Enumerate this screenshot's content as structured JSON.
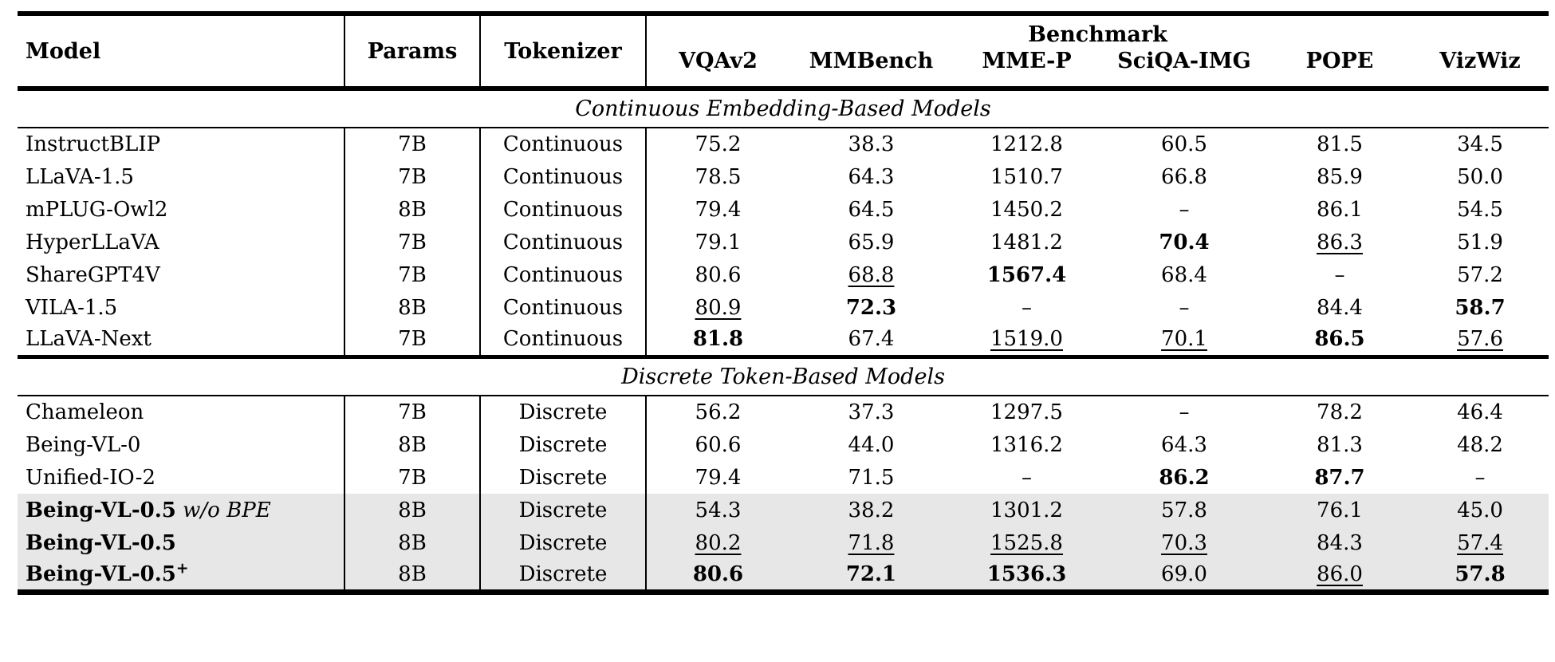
{
  "table": {
    "headers": {
      "model": "Model",
      "params": "Params",
      "tokenizer": "Tokenizer",
      "benchmark_group": "Benchmark",
      "benchmarks": [
        "VQAv2",
        "MMBench",
        "MME-P",
        "SciQA-IMG",
        "POPE",
        "VizWiz"
      ]
    },
    "sections": [
      {
        "title": "Continuous Embedding-Based Models",
        "rows": [
          {
            "model": {
              "text": "InstructBLIP",
              "bold": false
            },
            "params": "7B",
            "tokenizer": "Continuous",
            "highlight": false,
            "cells": [
              {
                "v": "75.2",
                "style": "p"
              },
              {
                "v": "38.3",
                "style": "p"
              },
              {
                "v": "1212.8",
                "style": "p"
              },
              {
                "v": "60.5",
                "style": "p"
              },
              {
                "v": "81.5",
                "style": "p"
              },
              {
                "v": "34.5",
                "style": "p"
              }
            ]
          },
          {
            "model": {
              "text": "LLaVA-1.5",
              "bold": false
            },
            "params": "7B",
            "tokenizer": "Continuous",
            "highlight": false,
            "cells": [
              {
                "v": "78.5",
                "style": "p"
              },
              {
                "v": "64.3",
                "style": "p"
              },
              {
                "v": "1510.7",
                "style": "p"
              },
              {
                "v": "66.8",
                "style": "p"
              },
              {
                "v": "85.9",
                "style": "p"
              },
              {
                "v": "50.0",
                "style": "p"
              }
            ]
          },
          {
            "model": {
              "text": "mPLUG-Owl2",
              "bold": false
            },
            "params": "8B",
            "tokenizer": "Continuous",
            "highlight": false,
            "cells": [
              {
                "v": "79.4",
                "style": "p"
              },
              {
                "v": "64.5",
                "style": "p"
              },
              {
                "v": "1450.2",
                "style": "p"
              },
              {
                "v": "–",
                "style": "p"
              },
              {
                "v": "86.1",
                "style": "p"
              },
              {
                "v": "54.5",
                "style": "p"
              }
            ]
          },
          {
            "model": {
              "text": "HyperLLaVA",
              "bold": false
            },
            "params": "7B",
            "tokenizer": "Continuous",
            "highlight": false,
            "cells": [
              {
                "v": "79.1",
                "style": "p"
              },
              {
                "v": "65.9",
                "style": "p"
              },
              {
                "v": "1481.2",
                "style": "p"
              },
              {
                "v": "70.4",
                "style": "b"
              },
              {
                "v": "86.3",
                "style": "u"
              },
              {
                "v": "51.9",
                "style": "p"
              }
            ]
          },
          {
            "model": {
              "text": "ShareGPT4V",
              "bold": false
            },
            "params": "7B",
            "tokenizer": "Continuous",
            "highlight": false,
            "cells": [
              {
                "v": "80.6",
                "style": "p"
              },
              {
                "v": "68.8",
                "style": "u"
              },
              {
                "v": "1567.4",
                "style": "b"
              },
              {
                "v": "68.4",
                "style": "p"
              },
              {
                "v": "–",
                "style": "p"
              },
              {
                "v": "57.2",
                "style": "p"
              }
            ]
          },
          {
            "model": {
              "text": "VILA-1.5",
              "bold": false
            },
            "params": "8B",
            "tokenizer": "Continuous",
            "highlight": false,
            "cells": [
              {
                "v": "80.9",
                "style": "u"
              },
              {
                "v": "72.3",
                "style": "b"
              },
              {
                "v": "–",
                "style": "p"
              },
              {
                "v": "–",
                "style": "p"
              },
              {
                "v": "84.4",
                "style": "p"
              },
              {
                "v": "58.7",
                "style": "b"
              }
            ]
          },
          {
            "model": {
              "text": "LLaVA-Next",
              "bold": false
            },
            "params": "7B",
            "tokenizer": "Continuous",
            "highlight": false,
            "cells": [
              {
                "v": "81.8",
                "style": "b"
              },
              {
                "v": "67.4",
                "style": "p"
              },
              {
                "v": "1519.0",
                "style": "u"
              },
              {
                "v": "70.1",
                "style": "u"
              },
              {
                "v": "86.5",
                "style": "b"
              },
              {
                "v": "57.6",
                "style": "u"
              }
            ]
          }
        ]
      },
      {
        "title": "Discrete Token-Based Models",
        "rows": [
          {
            "model": {
              "text": "Chameleon",
              "bold": false
            },
            "params": "7B",
            "tokenizer": "Discrete",
            "highlight": false,
            "cells": [
              {
                "v": "56.2",
                "style": "p"
              },
              {
                "v": "37.3",
                "style": "p"
              },
              {
                "v": "1297.5",
                "style": "p"
              },
              {
                "v": "–",
                "style": "p"
              },
              {
                "v": "78.2",
                "style": "p"
              },
              {
                "v": "46.4",
                "style": "p"
              }
            ]
          },
          {
            "model": {
              "text": "Being-VL-0",
              "bold": false
            },
            "params": "8B",
            "tokenizer": "Discrete",
            "highlight": false,
            "cells": [
              {
                "v": "60.6",
                "style": "p"
              },
              {
                "v": "44.0",
                "style": "p"
              },
              {
                "v": "1316.2",
                "style": "p"
              },
              {
                "v": "64.3",
                "style": "p"
              },
              {
                "v": "81.3",
                "style": "p"
              },
              {
                "v": "48.2",
                "style": "p"
              }
            ]
          },
          {
            "model": {
              "text": "Unified-IO-2",
              "bold": false
            },
            "params": "7B",
            "tokenizer": "Discrete",
            "highlight": false,
            "cells": [
              {
                "v": "79.4",
                "style": "p"
              },
              {
                "v": "71.5",
                "style": "p"
              },
              {
                "v": "–",
                "style": "p"
              },
              {
                "v": "86.2",
                "style": "b"
              },
              {
                "v": "87.7",
                "style": "b"
              },
              {
                "v": "–",
                "style": "p"
              }
            ]
          },
          {
            "model": {
              "text": "Being-VL-0.5",
              "bold": true,
              "italic_suffix": "w/o BPE"
            },
            "params": "8B",
            "tokenizer": "Discrete",
            "highlight": true,
            "cells": [
              {
                "v": "54.3",
                "style": "p"
              },
              {
                "v": "38.2",
                "style": "p"
              },
              {
                "v": "1301.2",
                "style": "p"
              },
              {
                "v": "57.8",
                "style": "p"
              },
              {
                "v": "76.1",
                "style": "p"
              },
              {
                "v": "45.0",
                "style": "p"
              }
            ]
          },
          {
            "model": {
              "text": "Being-VL-0.5",
              "bold": true
            },
            "params": "8B",
            "tokenizer": "Discrete",
            "highlight": true,
            "cells": [
              {
                "v": "80.2",
                "style": "u"
              },
              {
                "v": "71.8",
                "style": "u"
              },
              {
                "v": "1525.8",
                "style": "u"
              },
              {
                "v": "70.3",
                "style": "u"
              },
              {
                "v": "84.3",
                "style": "p"
              },
              {
                "v": "57.4",
                "style": "u"
              }
            ]
          },
          {
            "model": {
              "text": "Being-VL-0.5",
              "bold": true,
              "sup": "+"
            },
            "params": "8B",
            "tokenizer": "Discrete",
            "highlight": true,
            "cells": [
              {
                "v": "80.6",
                "style": "b"
              },
              {
                "v": "72.1",
                "style": "b"
              },
              {
                "v": "1536.3",
                "style": "b"
              },
              {
                "v": "69.0",
                "style": "p"
              },
              {
                "v": "86.0",
                "style": "u"
              },
              {
                "v": "57.8",
                "style": "b"
              }
            ]
          }
        ]
      }
    ]
  }
}
